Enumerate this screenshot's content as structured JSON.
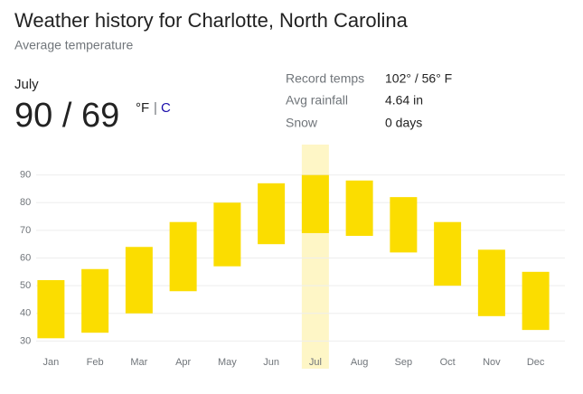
{
  "header": {
    "title": "Weather history for Charlotte, North Carolina",
    "subtitle": "Average temperature"
  },
  "summary": {
    "month": "July",
    "temps": "90 / 69",
    "unit_f": "°F",
    "separator": "|",
    "unit_c": "C"
  },
  "stats": [
    {
      "label": "Record temps",
      "value": "102° / 56° F"
    },
    {
      "label": "Avg rainfall",
      "value": "4.64 in"
    },
    {
      "label": "Snow",
      "value": "0 days"
    }
  ],
  "chart_data": {
    "type": "range_bar",
    "categories": [
      "Jan",
      "Feb",
      "Mar",
      "Apr",
      "May",
      "Jun",
      "Jul",
      "Aug",
      "Sep",
      "Oct",
      "Nov",
      "Dec"
    ],
    "high": [
      52,
      56,
      64,
      73,
      80,
      87,
      90,
      88,
      82,
      73,
      63,
      55
    ],
    "low": [
      31,
      33,
      40,
      48,
      57,
      65,
      69,
      68,
      62,
      50,
      39,
      34
    ],
    "color": "#fbdd00",
    "highlight_index": 6,
    "highlight_color": "#fef6c6",
    "ylim": [
      20,
      100
    ],
    "yticks": [
      30,
      40,
      50,
      60,
      70,
      80,
      90
    ],
    "grid": true
  }
}
